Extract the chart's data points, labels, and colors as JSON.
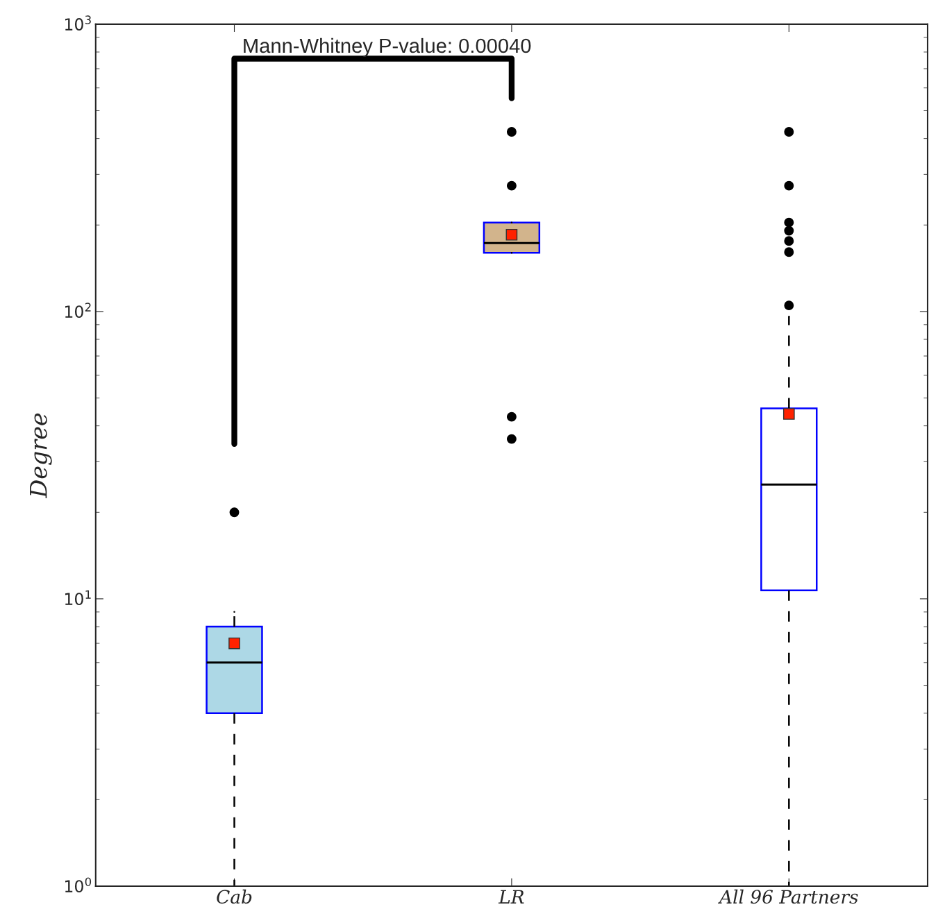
{
  "chart_data": {
    "type": "box",
    "ylabel": "Degree",
    "categories": [
      "Cab",
      "LR",
      "All 96 Partners"
    ],
    "boxes": [
      {
        "low": 1,
        "q1": 4.0,
        "median": 6.0,
        "q3": 8.0,
        "high": 9.0,
        "mean": 7.0,
        "outliers": [
          20
        ]
      },
      {
        "low": 160,
        "q1": 160,
        "median": 173,
        "q3": 204,
        "high": 204,
        "mean": 185,
        "outliers": [
          422,
          274,
          43,
          36
        ]
      },
      {
        "low": 1,
        "q1": 10.7,
        "median": 25,
        "q3": 46,
        "high": 96,
        "mean": 44,
        "outliers": [
          422,
          274,
          204,
          191,
          176,
          161,
          105
        ]
      }
    ],
    "colors": [
      "#add8e6",
      "#d2b48c",
      "#ffffff"
    ],
    "log": "y",
    "ylim": [
      1,
      1000
    ],
    "yticks": [
      {
        "value": 1,
        "label": "10$^{0}$"
      },
      {
        "value": 10,
        "label": "10$^{1}$"
      },
      {
        "value": 100,
        "label": "10$^{2}$"
      },
      {
        "value": 1000,
        "label": "10$^{3}$"
      }
    ],
    "grid": false,
    "annotations": [
      "Mann-Whitney P-value: 0.00040"
    ]
  }
}
